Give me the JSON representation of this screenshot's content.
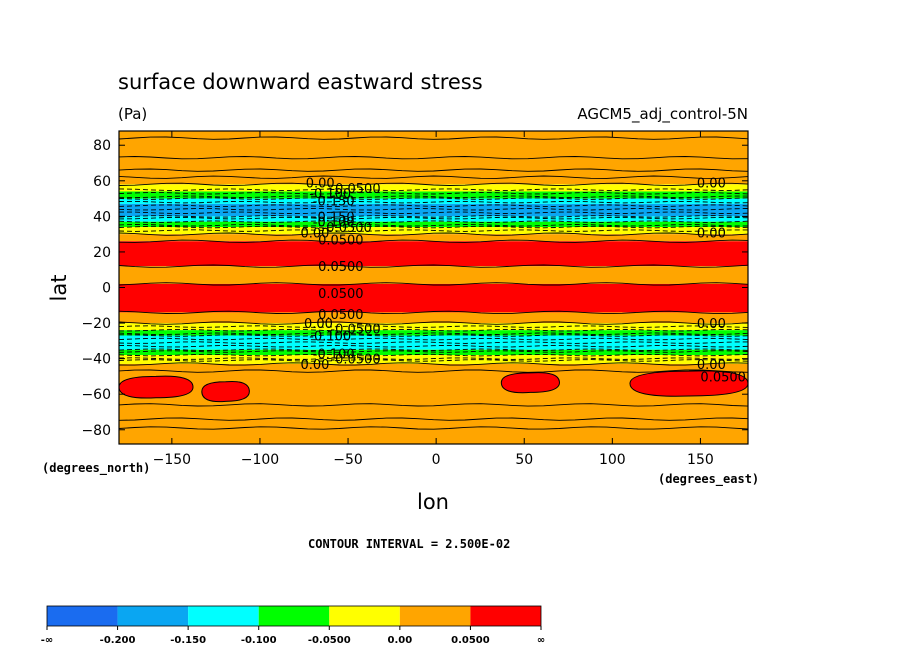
{
  "chart_data": {
    "type": "heatmap",
    "title": "surface downward eastward stress",
    "units": "(Pa)",
    "dataset": "AGCM5_adj_control-5N",
    "xlabel": "lon",
    "ylabel": "lat",
    "x_unit_note": "(degrees_east)",
    "y_unit_note": "(degrees_north)",
    "xlim": [
      -180,
      177
    ],
    "ylim": [
      -88,
      88
    ],
    "x_ticks": [
      -150,
      -100,
      -50,
      0,
      50,
      100,
      150
    ],
    "y_ticks": [
      80,
      60,
      40,
      20,
      0,
      -20,
      -40,
      -60,
      -80
    ],
    "contour_interval_text": "CONTOUR INTERVAL = 2.500E-02",
    "colorbar": {
      "labels": [
        "-∞",
        "-0.200",
        "-0.150",
        "-0.100",
        "-0.0500",
        "0.00",
        "0.0500",
        "∞"
      ],
      "colors": [
        "#1a6cf0",
        "#0aa6f2",
        "#00ffff",
        "#00ff00",
        "#ffff00",
        "#ffa500",
        "#ff0000"
      ]
    },
    "zonal_bands": [
      {
        "lat": [
          58,
          88
        ],
        "color": "#ffa500",
        "value_range": "0.00 to 0.0500"
      },
      {
        "lat": [
          54,
          58
        ],
        "color": "#ffff00",
        "value_range": "-0.0500 to 0.00"
      },
      {
        "lat": [
          50,
          54
        ],
        "color": "#00ff00",
        "value_range": "-0.100 to -0.0500"
      },
      {
        "lat": [
          47,
          50
        ],
        "color": "#00ffff",
        "value_range": "-0.150 to -0.100"
      },
      {
        "lat": [
          40,
          47
        ],
        "color": "#0aa6f2",
        "value_range": "-0.200 to -0.150"
      },
      {
        "lat": [
          37,
          40
        ],
        "color": "#00ffff",
        "value_range": "-0.150 to -0.100"
      },
      {
        "lat": [
          34,
          37
        ],
        "color": "#00ff00",
        "value_range": "-0.100 to -0.0500"
      },
      {
        "lat": [
          30,
          34
        ],
        "color": "#ffff00",
        "value_range": "-0.0500 to 0.00"
      },
      {
        "lat": [
          26,
          30
        ],
        "color": "#ffa500",
        "value_range": "0.00 to 0.0500"
      },
      {
        "lat": [
          12,
          26
        ],
        "color": "#ff0000",
        "value_range": "> 0.0500"
      },
      {
        "lat": [
          2,
          12
        ],
        "color": "#ffa500",
        "value_range": "0.00 to 0.0500"
      },
      {
        "lat": [
          -14,
          2
        ],
        "color": "#ff0000",
        "value_range": "> 0.0500"
      },
      {
        "lat": [
          -20,
          -14
        ],
        "color": "#ffa500",
        "value_range": "0.00 to 0.0500"
      },
      {
        "lat": [
          -24,
          -20
        ],
        "color": "#ffff00",
        "value_range": "-0.0500 to 0.00"
      },
      {
        "lat": [
          -27,
          -24
        ],
        "color": "#00ff00",
        "value_range": "-0.100 to -0.0500"
      },
      {
        "lat": [
          -35,
          -27
        ],
        "color": "#00ffff",
        "value_range": "-0.150 to -0.100"
      },
      {
        "lat": [
          -38,
          -35
        ],
        "color": "#00ff00",
        "value_range": "-0.100 to -0.0500"
      },
      {
        "lat": [
          -43,
          -38
        ],
        "color": "#ffff00",
        "value_range": "-0.0500 to 0.00"
      },
      {
        "lat": [
          -88,
          -43
        ],
        "color": "#ffa500",
        "value_range": "0.00 to 0.0500"
      }
    ],
    "red_patches": [
      {
        "lon": [
          -180,
          -138
        ],
        "lat": [
          -62,
          -50
        ]
      },
      {
        "lon": [
          -133,
          -106
        ],
        "lat": [
          -64,
          -53
        ]
      },
      {
        "lon": [
          37,
          70
        ],
        "lat": [
          -59,
          -48
        ]
      },
      {
        "lon": [
          110,
          177
        ],
        "lat": [
          -61,
          -47
        ]
      }
    ],
    "contour_labels": [
      {
        "text": "0.00",
        "lon": -74,
        "lat": 59
      },
      {
        "text": "-0.0500",
        "lon": -60,
        "lat": 56
      },
      {
        "text": "-0.100",
        "lon": -72,
        "lat": 53
      },
      {
        "text": "-0.150",
        "lon": -70,
        "lat": 49
      },
      {
        "text": "-0.150",
        "lon": -70,
        "lat": 40
      },
      {
        "text": "-0.100",
        "lon": -70,
        "lat": 37
      },
      {
        "text": "-0.0500",
        "lon": -65,
        "lat": 34
      },
      {
        "text": "0.00",
        "lon": -77,
        "lat": 31
      },
      {
        "text": "0.0500",
        "lon": -67,
        "lat": 27
      },
      {
        "text": "0.0500",
        "lon": -67,
        "lat": 12
      },
      {
        "text": "0.0500",
        "lon": -67,
        "lat": -3
      },
      {
        "text": "0.0500",
        "lon": -67,
        "lat": -15
      },
      {
        "text": "0.00",
        "lon": -75,
        "lat": -20
      },
      {
        "text": "-0.0500",
        "lon": -60,
        "lat": -23
      },
      {
        "text": "-0.100",
        "lon": -72,
        "lat": -27
      },
      {
        "text": "-0.100",
        "lon": -70,
        "lat": -37
      },
      {
        "text": "-0.0500",
        "lon": -60,
        "lat": -40
      },
      {
        "text": "0.00",
        "lon": -77,
        "lat": -43
      },
      {
        "text": "0.00",
        "lon": 148,
        "lat": 59
      },
      {
        "text": "0.00",
        "lon": 148,
        "lat": 31
      },
      {
        "text": "0.00",
        "lon": 148,
        "lat": -20
      },
      {
        "text": "0.00",
        "lon": 148,
        "lat": -43
      },
      {
        "text": "0.0500",
        "lon": 150,
        "lat": -50
      }
    ],
    "solid_contour_lats": [
      84,
      73,
      66,
      62,
      58,
      30,
      26,
      12,
      2,
      -14,
      -20,
      -43,
      -47,
      -66,
      -74,
      -79
    ],
    "dashed_contour_lats": [
      55,
      53,
      51,
      50,
      48,
      46,
      44,
      42,
      40,
      39,
      37,
      35,
      34,
      32,
      -22,
      -24,
      -26,
      -27,
      -29,
      -31,
      -33,
      -35,
      -36,
      -38,
      -40,
      -41
    ]
  }
}
